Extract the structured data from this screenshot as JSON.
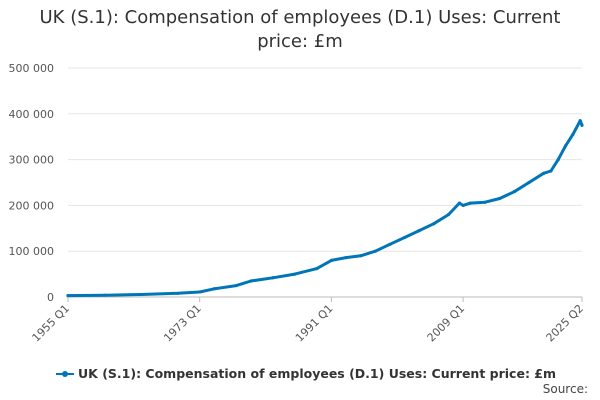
{
  "chart_data": {
    "type": "line",
    "title_line1": "UK (S.1): Compensation of employees (D.1) Uses: Current",
    "title_line2": "price: £m",
    "xlabel": "",
    "ylabel": "",
    "x_ticks": [
      "1955 Q1",
      "1973 Q1",
      "1991 Q1",
      "2009 Q1",
      "2025 Q2"
    ],
    "y_ticks": [
      "0",
      "100 000",
      "200 000",
      "300 000",
      "400 000",
      "500 000"
    ],
    "ylim": [
      0,
      500000
    ],
    "xlim": [
      1955.0,
      2025.25
    ],
    "grid": true,
    "legend_position": "bottom",
    "series": [
      {
        "name": "UK (S.1): Compensation of employees (D.1) Uses: Current price: £m",
        "color": "#0075B7",
        "points": [
          [
            1955,
            3000
          ],
          [
            1960,
            4000
          ],
          [
            1965,
            5500
          ],
          [
            1970,
            8000
          ],
          [
            1973,
            11000
          ],
          [
            1975,
            18000
          ],
          [
            1978,
            25000
          ],
          [
            1980,
            35000
          ],
          [
            1983,
            42000
          ],
          [
            1986,
            50000
          ],
          [
            1989,
            62000
          ],
          [
            1991,
            80000
          ],
          [
            1993,
            86000
          ],
          [
            1995,
            90000
          ],
          [
            1997,
            100000
          ],
          [
            1999,
            115000
          ],
          [
            2001,
            130000
          ],
          [
            2003,
            145000
          ],
          [
            2005,
            160000
          ],
          [
            2007,
            180000
          ],
          [
            2008.5,
            205000
          ],
          [
            2009,
            200000
          ],
          [
            2010,
            205000
          ],
          [
            2012,
            207000
          ],
          [
            2014,
            215000
          ],
          [
            2016,
            230000
          ],
          [
            2018,
            250000
          ],
          [
            2020,
            270000
          ],
          [
            2021,
            275000
          ],
          [
            2022,
            300000
          ],
          [
            2023,
            330000
          ],
          [
            2024,
            355000
          ],
          [
            2025,
            385000
          ],
          [
            2025.25,
            375000
          ]
        ]
      }
    ]
  },
  "legend_label": "UK (S.1): Compensation of employees (D.1) Uses: Current price: £m",
  "source_label": "Source:"
}
